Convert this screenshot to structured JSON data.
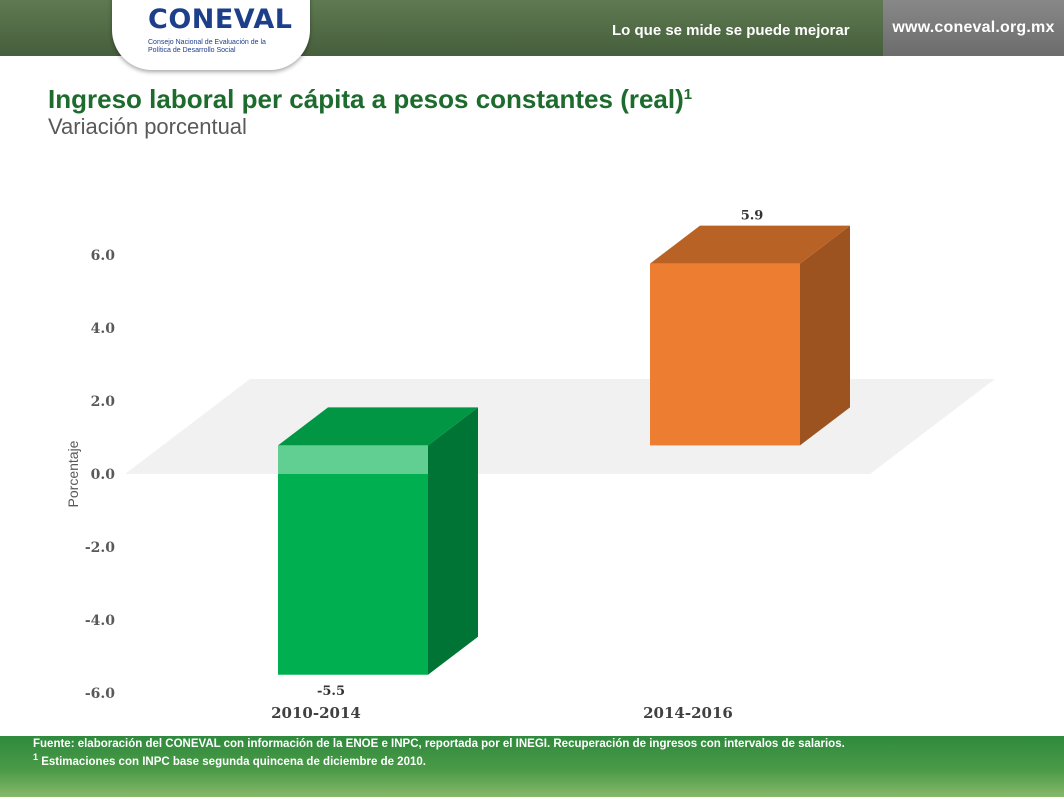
{
  "header": {
    "logo_text": "CONEVAL",
    "logo_subtitle": "Consejo Nacional de Evaluación de la Política de Desarrollo Social",
    "motto": "Lo que se mide se puede mejorar",
    "url": "www.coneval.org.mx"
  },
  "slide": {
    "title": "Ingreso laboral per cápita a pesos constantes (real)",
    "title_footnote_marker": "1",
    "subtitle": "Variación porcentual"
  },
  "chart_data": {
    "type": "bar",
    "categories": [
      "2010-2014",
      "2014-2016"
    ],
    "values": [
      -5.5,
      5.9
    ],
    "data_labels": [
      "-5.5",
      "5.9"
    ],
    "colors": [
      "#00b050",
      "#ed7d31"
    ],
    "ylabel": "Porcentaje",
    "ylim": [
      -6,
      6
    ],
    "yticks": [
      "6.0",
      "4.0",
      "2.0",
      "0.0",
      "-2.0",
      "-4.0",
      "-6.0"
    ],
    "style": "3d-column",
    "grid": false,
    "legend": false
  },
  "footer": {
    "source": "Fuente: elaboración del CONEVAL con información de la ENOE e INPC, reportada por el INEGI. Recuperación de ingresos con intervalos de salarios.",
    "note_marker": "1",
    "note": "Estimaciones con INPC base segunda quincena de diciembre de 2010."
  }
}
